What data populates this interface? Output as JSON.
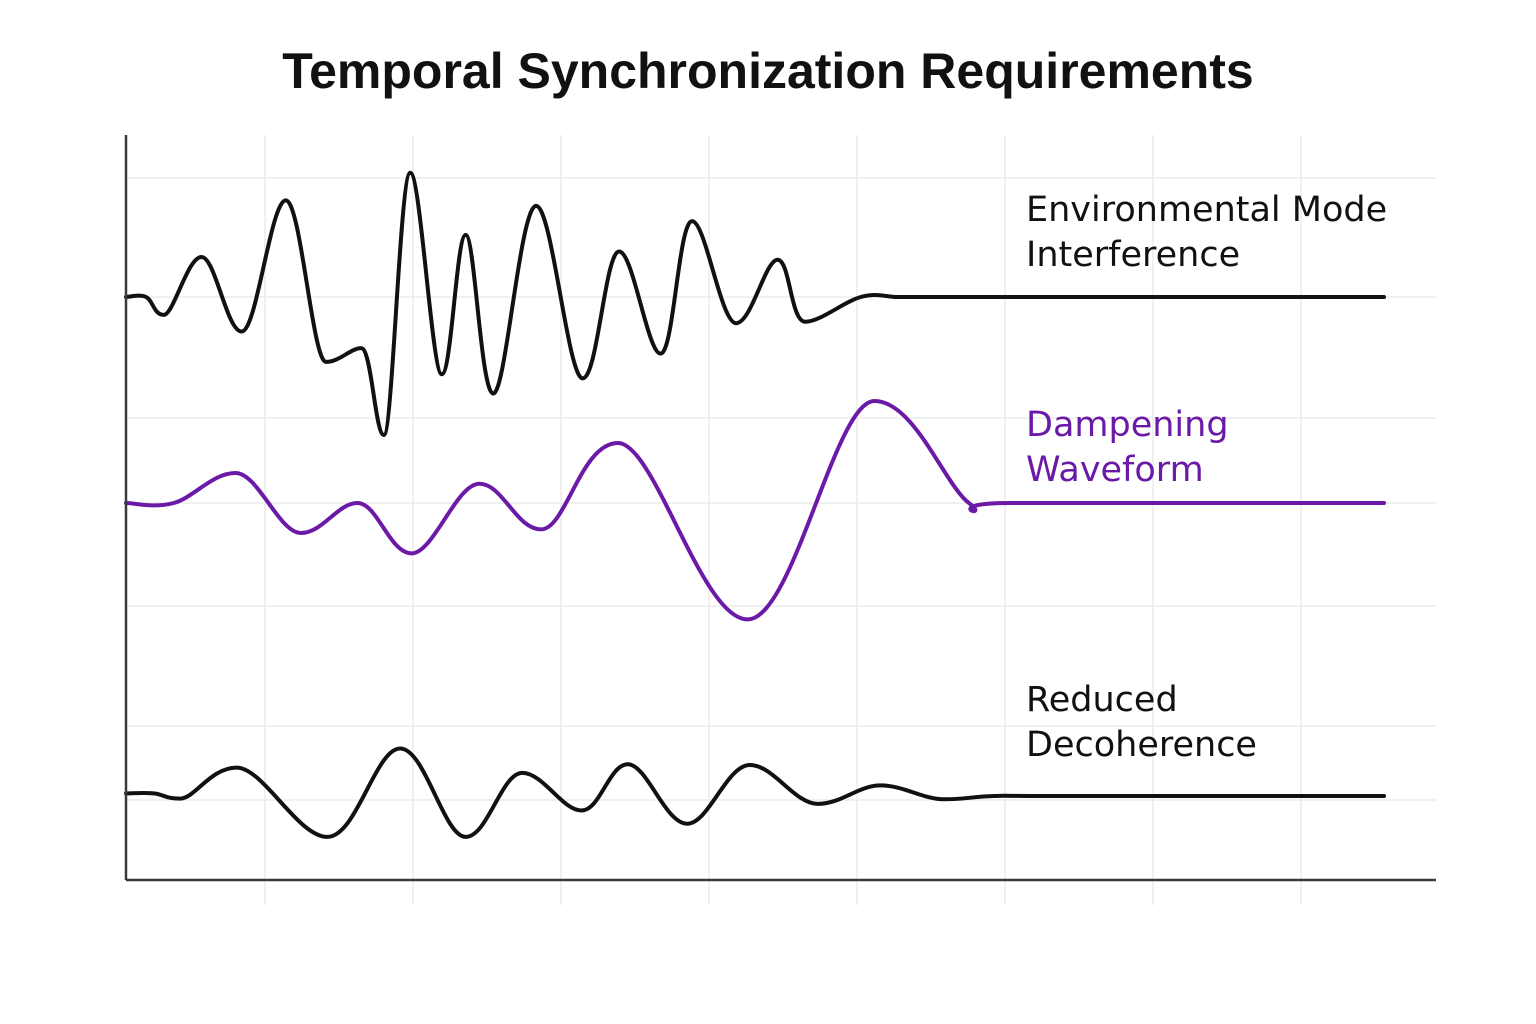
{
  "chart_data": {
    "type": "line",
    "title": "Temporal Synchronization Requirements",
    "xlabel": "",
    "ylabel": "",
    "xlim": [
      0,
      100
    ],
    "grid": true,
    "legend": "inline-right",
    "series": [
      {
        "name": "Environmental Mode Interference",
        "label_lines": [
          "Environmental Mode",
          "Interference"
        ],
        "color": "#111111",
        "x": [
          0,
          1.6,
          3.0,
          6.0,
          9.2,
          12.7,
          15.9,
          18.7,
          20.5,
          22.6,
          25.1,
          27.0,
          29.2,
          32.6,
          36.3,
          39.2,
          42.5,
          45.0,
          48.5,
          51.8,
          54.0,
          58.4,
          61.3,
          63.5,
          65.7,
          68.9,
          71.4,
          72.8,
          74.8,
          77.5,
          79.0,
          100
        ],
        "y": [
          0,
          0,
          -0.13,
          0.29,
          -0.25,
          0.7,
          -0.47,
          -0.37,
          -1.0,
          0.9,
          -0.56,
          0.45,
          -0.7,
          0.66,
          -0.59,
          0.33,
          -0.41,
          0.55,
          -0.19,
          0.27,
          -0.18,
          0,
          0,
          0,
          0,
          0,
          0,
          0,
          0,
          0,
          0,
          0
        ]
      },
      {
        "name": "Dampening Waveform",
        "label_lines": [
          "Dampening",
          "Waveform"
        ],
        "color": "#6a1aa6",
        "x": [
          0,
          3.8,
          8.7,
          13.9,
          18.4,
          22.7,
          28.1,
          33.0,
          39.1,
          49.4,
          59.5,
          67.0,
          70.3,
          100
        ],
        "y": [
          0,
          0,
          0.25,
          -0.25,
          0,
          -0.42,
          0.16,
          -0.22,
          0.5,
          -0.97,
          0.85,
          0,
          0,
          0
        ]
      },
      {
        "name": "Reduced Decoherence",
        "label_lines": [
          "Reduced",
          "Decoherence"
        ],
        "color": "#111111",
        "x": [
          0,
          2.2,
          4.3,
          8.8,
          16.0,
          21.8,
          27.0,
          31.5,
          36.2,
          39.9,
          44.6,
          49.6,
          55.0,
          60.0,
          65.0,
          69.0,
          74.0,
          100
        ],
        "y": [
          0.04,
          0.04,
          -0.04,
          0.43,
          -0.62,
          0.72,
          -0.62,
          0.35,
          -0.22,
          0.48,
          -0.42,
          0.47,
          -0.12,
          0.16,
          -0.05,
          0,
          0,
          0
        ]
      }
    ]
  }
}
